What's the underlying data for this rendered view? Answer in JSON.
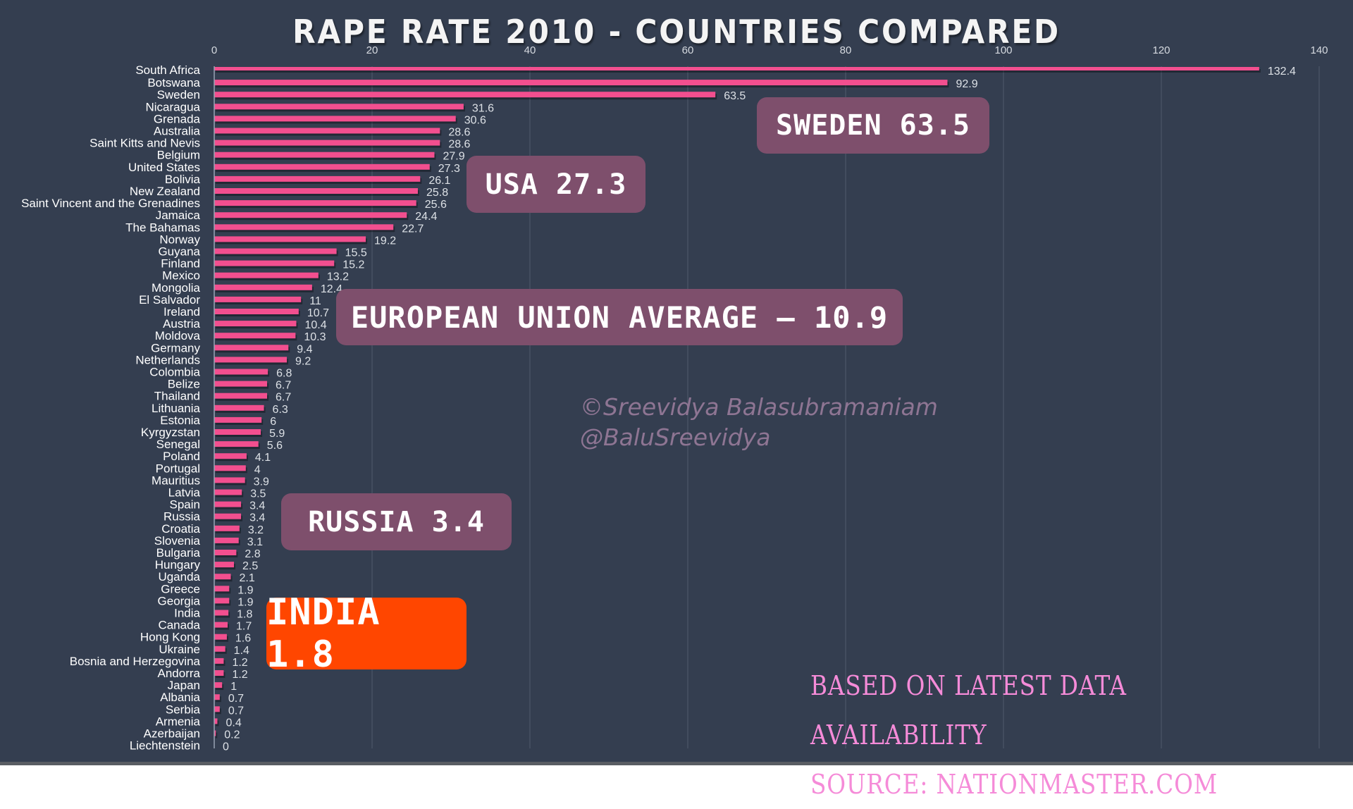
{
  "chart_data": {
    "type": "bar",
    "orientation": "horizontal",
    "title": "RAPE RATE 2010 - COUNTRIES COMPARED",
    "xlabel": "",
    "ylabel": "",
    "xlim": [
      0,
      140
    ],
    "xticks": [
      0,
      20,
      40,
      60,
      80,
      100,
      120,
      140
    ],
    "grid": true,
    "legend": "none",
    "categories": [
      "South Africa",
      "Botswana",
      "Sweden",
      "Nicaragua",
      "Grenada",
      "Australia",
      "Saint Kitts and Nevis",
      "Belgium",
      "United States",
      "Bolivia",
      "New Zealand",
      "Saint Vincent and the Grenadines",
      "Jamaica",
      "The Bahamas",
      "Norway",
      "Guyana",
      "Finland",
      "Mexico",
      "Mongolia",
      "El Salvador",
      "Ireland",
      "Austria",
      "Moldova",
      "Germany",
      "Netherlands",
      "Colombia",
      "Belize",
      "Thailand",
      "Lithuania",
      "Estonia",
      "Kyrgyzstan",
      "Senegal",
      "Poland",
      "Portugal",
      "Mauritius",
      "Latvia",
      "Spain",
      "Russia",
      "Croatia",
      "Slovenia",
      "Bulgaria",
      "Hungary",
      "Uganda",
      "Greece",
      "Georgia",
      "India",
      "Canada",
      "Hong Kong",
      "Ukraine",
      "Bosnia and Herzegovina",
      "Andorra",
      "Japan",
      "Albania",
      "Serbia",
      "Armenia",
      "Azerbaijan",
      "Liechtenstein"
    ],
    "values": [
      132.4,
      92.9,
      63.5,
      31.6,
      30.6,
      28.6,
      28.6,
      27.9,
      27.3,
      26.1,
      25.8,
      25.6,
      24.4,
      22.7,
      19.2,
      15.5,
      15.2,
      13.2,
      12.4,
      11,
      10.7,
      10.4,
      10.3,
      9.4,
      9.2,
      6.8,
      6.7,
      6.7,
      6.3,
      6,
      5.9,
      5.6,
      4.1,
      4,
      3.9,
      3.5,
      3.4,
      3.4,
      3.2,
      3.1,
      2.8,
      2.5,
      2.1,
      1.9,
      1.9,
      1.8,
      1.7,
      1.6,
      1.4,
      1.2,
      1.2,
      1,
      0.7,
      0.7,
      0.4,
      0.2,
      0
    ],
    "value_labels": [
      "132.4",
      "92.9",
      "63.5",
      "31.6",
      "30.6",
      "28.6",
      "28.6",
      "27.9",
      "27.3",
      "26.1",
      "25.8",
      "25.6",
      "24.4",
      "22.7",
      "19.2",
      "15.5",
      "15.2",
      "13.2",
      "12.4",
      "11",
      "10.7",
      "10.4",
      "10.3",
      "9.4",
      "9.2",
      "6.8",
      "6.7",
      "6.7",
      "6.3",
      "6",
      "5.9",
      "5.6",
      "4.1",
      "4",
      "3.9",
      "3.5",
      "3.4",
      "3.4",
      "3.2",
      "3.1",
      "2.8",
      "2.5",
      "2.1",
      "1.9",
      "1.9",
      "1.8",
      "1.7",
      "1.6",
      "1.4",
      "1.2",
      "1.2",
      "1",
      "0.7",
      "0.7",
      "0.4",
      "0.2",
      "0"
    ],
    "colors": {
      "bar": "#f24f8f",
      "background": "#343e50",
      "grid": "#4b5567",
      "axis": "#9aa4b4"
    }
  },
  "callouts": {
    "sweden": "SWEDEN 63.5",
    "usa": "USA 27.3",
    "eu": "EUROPEAN UNION AVERAGE – 10.9",
    "russia": "RUSSIA 3.4",
    "india": "INDIA 1.8"
  },
  "watermark": {
    "line1": "©Sreevidya Balasubramaniam",
    "line2": "@BaluSreevidya"
  },
  "footnote": {
    "line1": "BASED ON LATEST DATA AVAILABILITY",
    "line2": "SOURCE: NATIONMASTER.COM"
  }
}
